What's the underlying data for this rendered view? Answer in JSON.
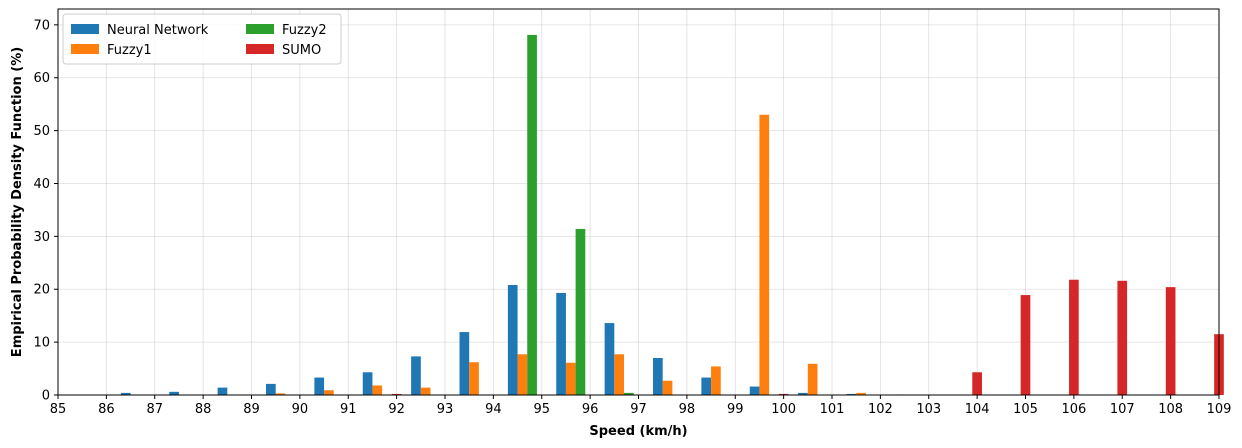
{
  "chart_data": {
    "type": "bar",
    "title": "",
    "xlabel": "Speed (km/h)",
    "ylabel": "Empirical Probability Density Function (%)",
    "x_ticks": [
      85,
      86,
      87,
      88,
      89,
      90,
      91,
      92,
      93,
      94,
      95,
      96,
      97,
      98,
      99,
      100,
      101,
      102,
      103,
      104,
      105,
      106,
      107,
      108,
      109
    ],
    "y_ticks": [
      0,
      10,
      20,
      30,
      40,
      50,
      60,
      70
    ],
    "xlim": [
      85,
      109
    ],
    "ylim": [
      0,
      73
    ],
    "grid": true,
    "legend_position": "top-left",
    "legend_columns": 2,
    "categories": [
      85,
      86,
      87,
      88,
      89,
      90,
      91,
      92,
      93,
      94,
      95,
      96,
      97,
      98,
      99,
      100,
      101,
      102,
      103,
      104,
      105,
      106,
      107,
      108
    ],
    "series": [
      {
        "name": "Neural Network",
        "color": "#1f77b4",
        "values": [
          0,
          0.4,
          0.6,
          1.4,
          2.1,
          3.3,
          4.3,
          7.3,
          11.9,
          20.8,
          19.3,
          13.6,
          7.0,
          3.3,
          1.6,
          0.4,
          0.2,
          0.1,
          0,
          0,
          0,
          0,
          0,
          0
        ]
      },
      {
        "name": "Fuzzy1",
        "color": "#ff7f0e",
        "values": [
          0,
          0,
          0,
          0,
          0.3,
          0.9,
          1.8,
          1.4,
          6.2,
          7.7,
          6.1,
          7.7,
          2.7,
          5.4,
          53.0,
          5.9,
          0.4,
          0,
          0,
          0,
          0,
          0,
          0,
          0
        ]
      },
      {
        "name": "Fuzzy2",
        "color": "#2ca02c",
        "values": [
          0,
          0,
          0,
          0,
          0,
          0,
          0,
          0,
          0,
          68.1,
          31.4,
          0.4,
          0,
          0,
          0,
          0,
          0,
          0,
          0,
          0,
          0,
          0,
          0,
          0
        ]
      },
      {
        "name": "SUMO",
        "color": "#d62728",
        "values": [
          0,
          0,
          0,
          0,
          0,
          0,
          0.2,
          0,
          0,
          0,
          0,
          0,
          0,
          0,
          0.2,
          0,
          0,
          0,
          4.3,
          18.9,
          21.8,
          21.6,
          20.4,
          11.5
        ]
      }
    ]
  }
}
